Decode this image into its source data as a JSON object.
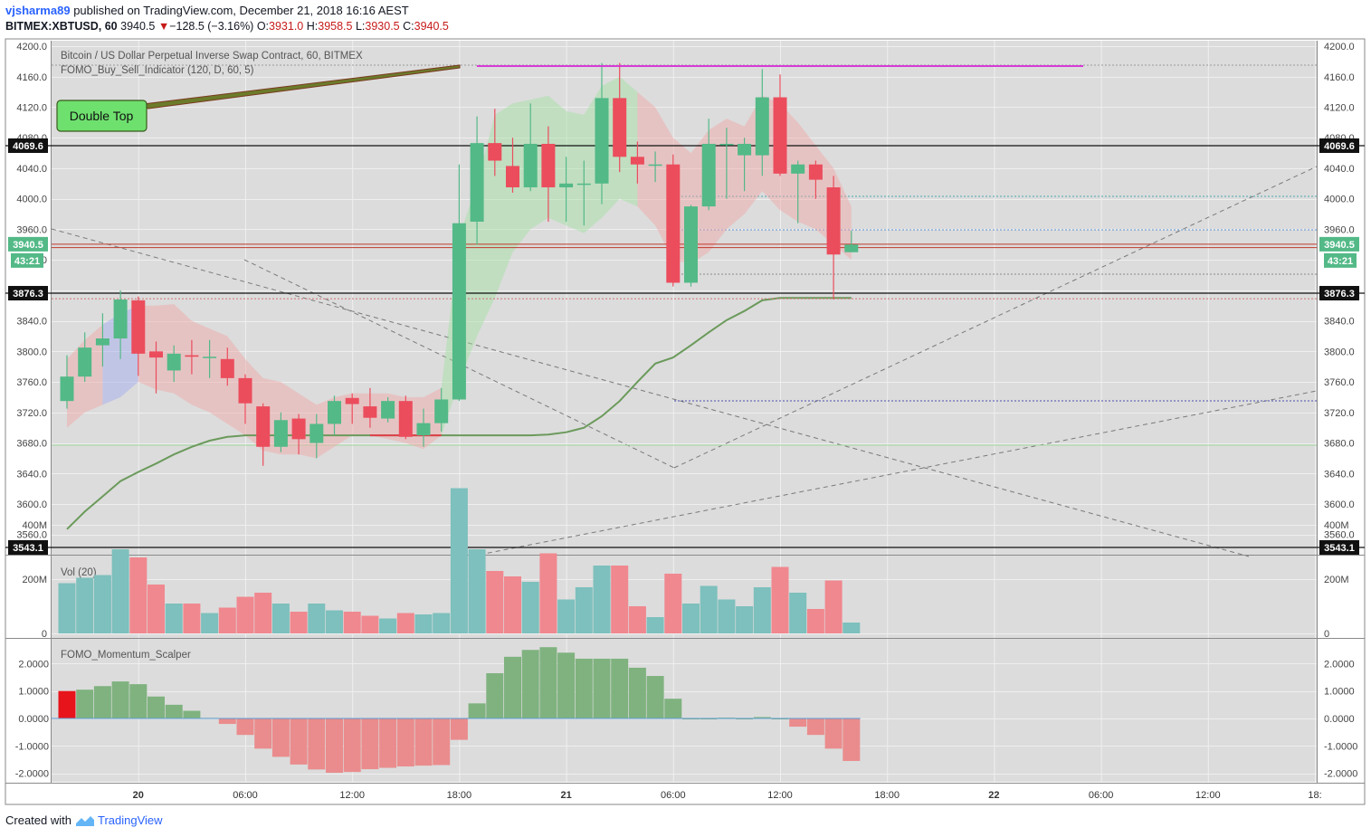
{
  "header": {
    "author": "vjsharma89",
    "published_text": "published on TradingView.com, December 21, 2018 16:16 AEST",
    "symbol": "BITMEX:XBTUSD, 60",
    "last": "3940.5",
    "down_arrow": "▼",
    "change": "−128.5 (−3.16%)",
    "o_label": "O:",
    "o": "3931.0",
    "h_label": "H:",
    "h": "3958.5",
    "l_label": "L:",
    "l": "3930.5",
    "c_label": "C:",
    "c": "3940.5"
  },
  "footer": {
    "created_with": "Created with",
    "brand": "TradingView"
  },
  "colors": {
    "up": "#53b987",
    "down": "#eb4d5c",
    "vol_up": "#7dc0bd",
    "vol_down": "#f0888f",
    "mom_up": "#7fb27f",
    "mom_down": "#ea8c8d",
    "mom_first": "#e8141c",
    "ma_line": "#6b9a5b",
    "magenta": "#d63bd6",
    "bg": "#dcdcdc",
    "callout": "#6ee06e"
  },
  "chart_data": [
    {
      "type": "candlestick",
      "title": "Bitcoin / US Dollar Perpetual Inverse Swap Contract, 60, BITMEX",
      "indicator": "FOMO_Buy_Sell_Indicator (120, D, 60, 5)",
      "ylim": [
        3530,
        4210
      ],
      "y_ticks": [
        3560,
        3600,
        3640,
        3680,
        3720,
        3760,
        3800,
        3840,
        3880,
        3920,
        3960,
        4000,
        4040,
        4080,
        4120,
        4160,
        4200
      ],
      "y_tick_labels": [
        "3560.0",
        "3600.0",
        "3640.0",
        "3680.0",
        "3720.0",
        "3760.0",
        "3800.0",
        "3840.0",
        "3880.0",
        "3920.0",
        "3960.0",
        "4000.0",
        "4040.0",
        "4080.0",
        "4120.0",
        "4160.0",
        "4200.0"
      ],
      "x_ticks": [
        {
          "i": 4,
          "label": "20"
        },
        {
          "i": 10,
          "label": "06:00"
        },
        {
          "i": 16,
          "label": "12:00"
        },
        {
          "i": 22,
          "label": "18:00"
        },
        {
          "i": 28,
          "label": "21"
        },
        {
          "i": 34,
          "label": "06:00"
        },
        {
          "i": 40,
          "label": "12:00"
        },
        {
          "i": 46,
          "label": "18:00"
        },
        {
          "i": 52,
          "label": "22"
        },
        {
          "i": 58,
          "label": "06:00"
        },
        {
          "i": 64,
          "label": "12:00"
        },
        {
          "i": 70,
          "label": "18:"
        }
      ],
      "candles": [
        [
          3735,
          3795,
          3725,
          3767
        ],
        [
          3767,
          3825,
          3760,
          3805
        ],
        [
          3808,
          3850,
          3780,
          3817
        ],
        [
          3817,
          3880,
          3790,
          3868
        ],
        [
          3867,
          3872,
          3768,
          3797
        ],
        [
          3800,
          3813,
          3745,
          3792
        ],
        [
          3775,
          3808,
          3760,
          3797
        ],
        [
          3795,
          3815,
          3770,
          3793
        ],
        [
          3793,
          3815,
          3765,
          3793
        ],
        [
          3790,
          3805,
          3755,
          3765
        ],
        [
          3765,
          3770,
          3705,
          3732
        ],
        [
          3728,
          3732,
          3650,
          3675
        ],
        [
          3675,
          3720,
          3668,
          3710
        ],
        [
          3712,
          3718,
          3665,
          3685
        ],
        [
          3680,
          3718,
          3660,
          3705
        ],
        [
          3705,
          3742,
          3690,
          3735
        ],
        [
          3739,
          3745,
          3705,
          3731
        ],
        [
          3728,
          3752,
          3700,
          3713
        ],
        [
          3712,
          3740,
          3707,
          3735
        ],
        [
          3735,
          3742,
          3685,
          3688
        ],
        [
          3690,
          3725,
          3675,
          3706
        ],
        [
          3706,
          3752,
          3695,
          3737
        ],
        [
          3737,
          4045,
          3735,
          3968
        ],
        [
          3970,
          4108,
          3940,
          4073
        ],
        [
          4073,
          4118,
          4030,
          4050
        ],
        [
          4043,
          4080,
          4008,
          4015
        ],
        [
          4015,
          4125,
          4010,
          4072
        ],
        [
          4072,
          4095,
          3970,
          4015
        ],
        [
          4015,
          4055,
          3970,
          4020
        ],
        [
          4020,
          4050,
          3965,
          4020
        ],
        [
          4020,
          4178,
          3993,
          4132
        ],
        [
          4132,
          4178,
          4035,
          4055
        ],
        [
          4055,
          4075,
          4020,
          4045
        ],
        [
          4045,
          4062,
          4022,
          4045
        ],
        [
          4045,
          4058,
          3885,
          3890
        ],
        [
          3890,
          3992,
          3885,
          3990
        ],
        [
          3990,
          4105,
          3985,
          4072
        ],
        [
          4072,
          4093,
          4000,
          4072
        ],
        [
          4057,
          4080,
          4010,
          4072
        ],
        [
          4057,
          4170,
          4030,
          4133
        ],
        [
          4133,
          4163,
          4030,
          4033
        ],
        [
          4033,
          4050,
          3968,
          4045
        ],
        [
          4045,
          4050,
          4000,
          4025
        ],
        [
          4015,
          4030,
          3868,
          3927
        ],
        [
          3930,
          3958,
          3930,
          3940
        ]
      ],
      "price_labels": [
        {
          "value": 4069.6,
          "label": "4069.6",
          "style": "black"
        },
        {
          "value": 3940.5,
          "label": "3940.5",
          "style": "green"
        },
        {
          "value": 3876.3,
          "label": "3876.3",
          "style": "black"
        },
        {
          "value": 3543.1,
          "label": "3543.1",
          "style": "black"
        }
      ],
      "countdown": "43:21",
      "annotations": [
        {
          "text": "Double Top"
        }
      ],
      "indicator_line": [
        3567,
        3590,
        3610,
        3630,
        3642,
        3653,
        3665,
        3675,
        3683,
        3688,
        3690,
        3690,
        3690,
        3690,
        3690,
        3690,
        3690,
        3690,
        3690,
        3690,
        3690,
        3690,
        3690,
        3690,
        3690,
        3690,
        3690,
        3691,
        3694,
        3700,
        3715,
        3735,
        3760,
        3784,
        3792,
        3808,
        3825,
        3841,
        3853,
        3867,
        3870,
        3870,
        3870,
        3870,
        3870
      ],
      "band_upper": [
        3790,
        3815,
        3835,
        3850,
        3860,
        3860,
        3862,
        3840,
        3830,
        3820,
        3790,
        3765,
        3760,
        3745,
        3730,
        3740,
        3745,
        3745,
        3745,
        3740,
        3740,
        3752,
        3950,
        4020,
        4110,
        4125,
        4130,
        4135,
        4115,
        4110,
        4148,
        4160,
        4140,
        4120,
        4080,
        4060,
        4090,
        4105,
        4095,
        4135,
        4125,
        4100,
        4070,
        4040,
        3990
      ],
      "band_lower": [
        3700,
        3720,
        3730,
        3740,
        3760,
        3750,
        3745,
        3730,
        3720,
        3705,
        3690,
        3670,
        3665,
        3665,
        3660,
        3675,
        3690,
        3690,
        3685,
        3680,
        3672,
        3690,
        3760,
        3820,
        3870,
        3930,
        3960,
        3975,
        3965,
        3955,
        3975,
        4000,
        3990,
        3965,
        3920,
        3915,
        3930,
        3960,
        3980,
        4010,
        3985,
        3970,
        3960,
        3940,
        3920
      ]
    },
    {
      "type": "bar",
      "title": "Vol (20)",
      "y_ticks": [
        0,
        200,
        400
      ],
      "y_tick_labels": [
        "0",
        "200M",
        "400M"
      ],
      "unit": "M",
      "values": [
        185,
        205,
        215,
        310,
        280,
        180,
        110,
        110,
        75,
        95,
        135,
        150,
        110,
        80,
        110,
        85,
        80,
        65,
        55,
        75,
        70,
        75,
        535,
        310,
        230,
        210,
        190,
        295,
        125,
        170,
        250,
        250,
        100,
        60,
        220,
        110,
        175,
        125,
        100,
        170,
        245,
        150,
        90,
        195,
        40
      ]
    },
    {
      "type": "bar",
      "title": "FOMO_Momentum_Scalper",
      "y_ticks": [
        -2,
        -1,
        0,
        1,
        2
      ],
      "y_tick_labels": [
        "-2.0000",
        "-1.0000",
        "0.0000",
        "1.0000",
        "2.0000"
      ],
      "values": [
        1.0,
        1.05,
        1.18,
        1.35,
        1.25,
        0.8,
        0.5,
        0.28,
        0.02,
        -0.2,
        -0.6,
        -1.1,
        -1.4,
        -1.68,
        -1.86,
        -1.98,
        -1.95,
        -1.85,
        -1.8,
        -1.75,
        -1.72,
        -1.7,
        -0.78,
        0.55,
        1.65,
        2.25,
        2.5,
        2.6,
        2.4,
        2.18,
        2.18,
        2.18,
        1.85,
        1.55,
        0.72,
        0.0,
        0.0,
        0.03,
        0.0,
        0.05,
        0.0,
        -0.3,
        -0.6,
        -1.1,
        -1.55
      ]
    }
  ]
}
